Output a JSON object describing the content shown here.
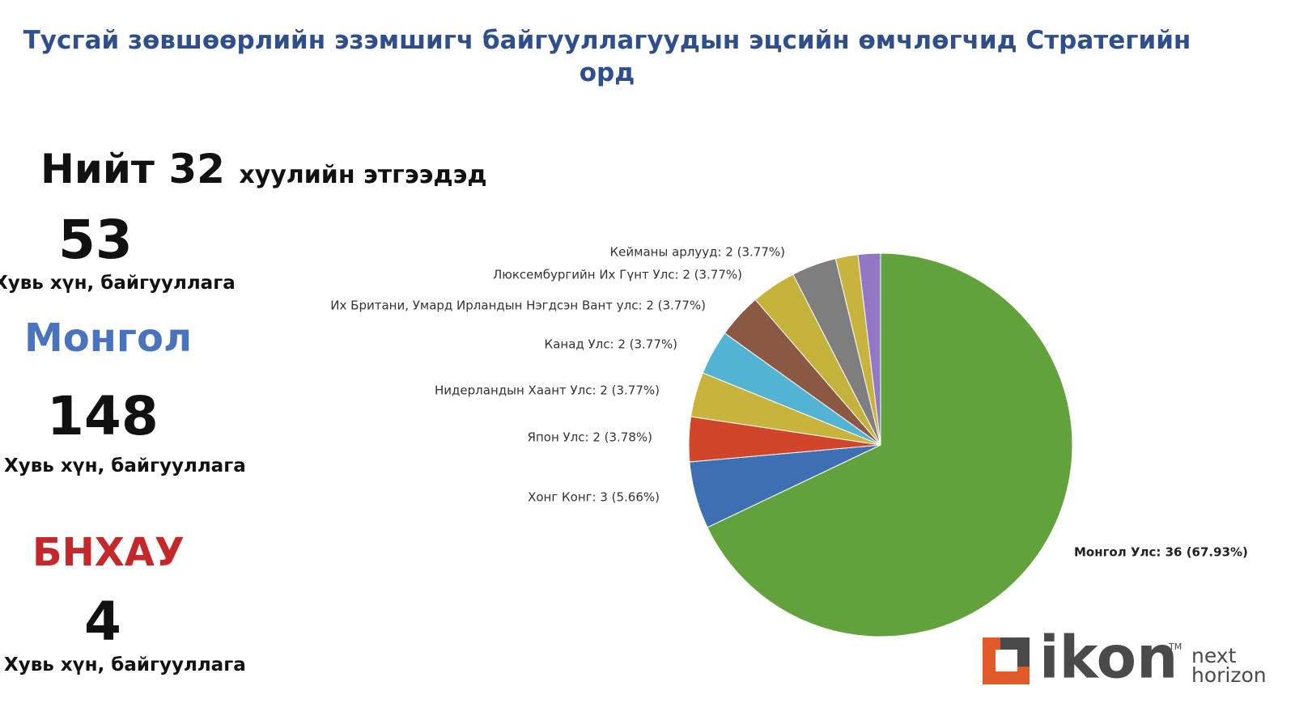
{
  "title": "Тусгай зөвшөөрлийн эзэмшигч байгууллагуудын эцсийн өмчлөгчид Стратегийн орд",
  "summary": {
    "total_word": "Нийт",
    "total_value": 32,
    "total_unit": "хуулийн этгээдэд",
    "groups": [
      {
        "value": 53,
        "label": "Хувь хүн, байгууллага"
      },
      {
        "title": "Монгол",
        "value": 148,
        "label": "Хувь хүн, байгууллага"
      },
      {
        "title": "БНХАУ",
        "value": 4,
        "label": "Хувь хүн, байгууллага"
      }
    ]
  },
  "logo": {
    "name": "ikon",
    "mark": "TM",
    "tagline": [
      "next",
      "horizon"
    ]
  },
  "chart_data": {
    "type": "pie",
    "categories": [
      "Монгол Улс",
      "Хонг Конг",
      "Япон Улс",
      "Нидерландын Хаант Улс",
      "Канад Улс",
      "Их Британи, Умард Ирландын Нэгдсэн Вант улс",
      "Люксембургийн Их Гүнт Улс",
      "Кейманы арлууд",
      null,
      null
    ],
    "values": [
      36,
      3,
      2,
      2,
      2,
      2,
      2,
      2,
      1,
      1
    ],
    "value_labels": [
      "Монгол Улс: 36 (67.93%)",
      "Хонг Конг: 3 (5.66%)",
      "Япон Улс: 2 (3.78%)",
      "Нидерландын Хаант Улс: 2 (3.77%)",
      "Канад Улс: 2 (3.77%)",
      "Их Британи, Умард Ирландын Нэгдсэн Вант улс: 2 (3.77%)",
      "Люксембургийн Их Гүнт Улс: 2 (3.77%)",
      "Кейманы арлууд: 2 (3.77%)",
      null,
      null
    ],
    "colors": [
      "#62a23c",
      "#3e6fb2",
      "#d1452b",
      "#c8b43c",
      "#52b3d3",
      "#8a5843",
      "#c4b23b",
      "#7e7e7e",
      "#c7b33e",
      "#9278c4"
    ]
  }
}
